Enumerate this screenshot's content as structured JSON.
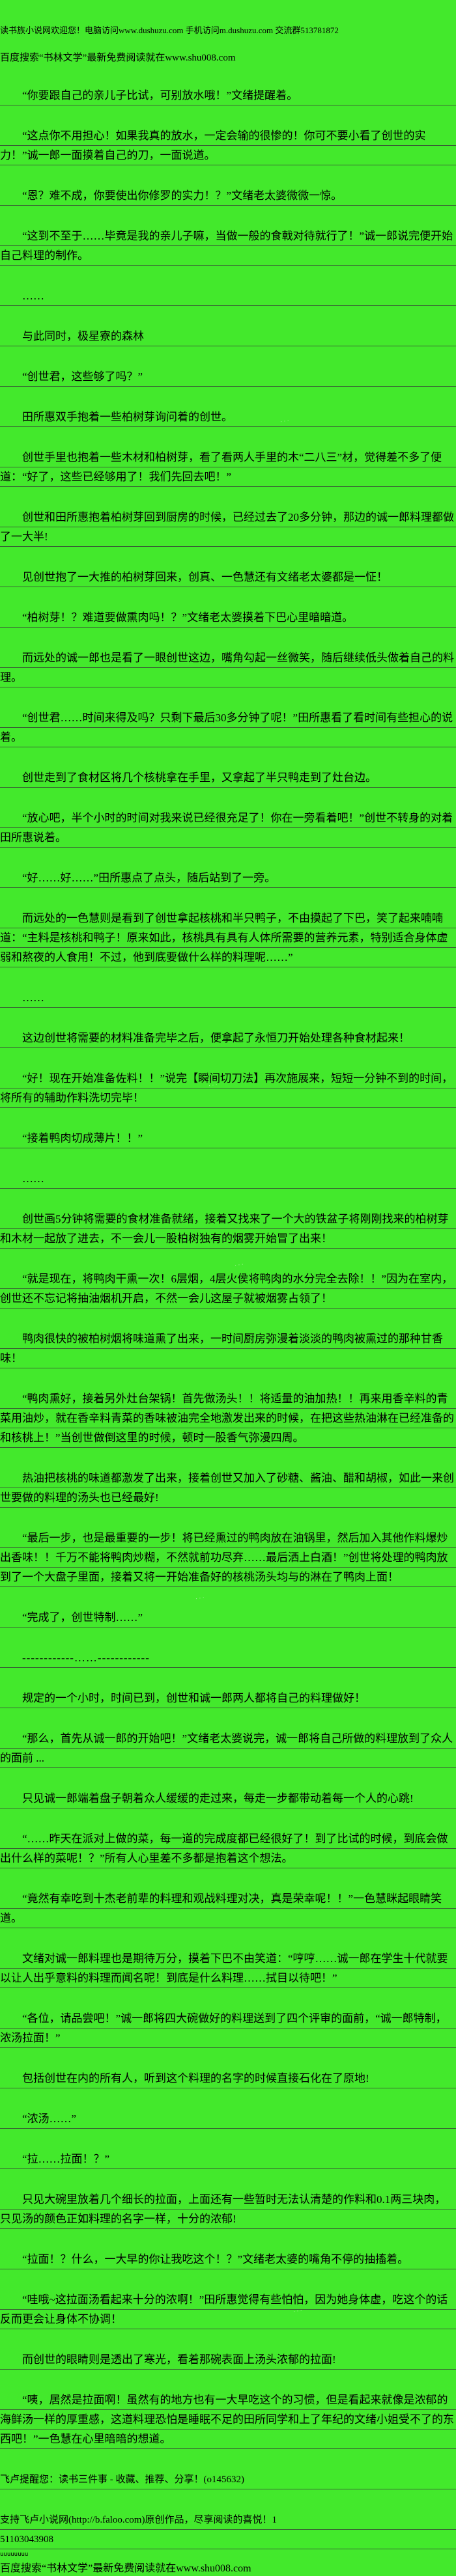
{
  "page": {
    "background_color": "#43E92C",
    "rule_color": "#374637",
    "text_color": "#000000"
  },
  "lines": [
    {
      "type": "header-small",
      "text": "读书族小说网欢迎您！电脑访问www.dushuzu.com 手机访问m.dushuzu.com 交流群513781872"
    },
    {
      "type": "header",
      "text": "百度搜索“书林文学”最新免费阅读就在www.shu008.com"
    },
    {
      "type": "body",
      "text": "“你要跟自己的亲儿子比试，可别放水哦！”文绪提醒着。"
    },
    {
      "type": "body",
      "text": "“这点你不用担心！如果我真的放水，一定会输的很惨的！你可不要小看了创世的实力！”诚一郎一面摸着自己的刀，一面说道。"
    },
    {
      "type": "body",
      "text": "“恩？难不成，你要使出你修罗的实力！？”文绪老太婆微微一惊。"
    },
    {
      "type": "body",
      "text": "“这到不至于……毕竟是我的亲儿子嘛，当做一般的食戟对待就行了！”诚一郎说完便开始自己料理的制作。"
    },
    {
      "type": "body",
      "text": "……"
    },
    {
      "type": "body",
      "text": "与此同时，极星寮的森林"
    },
    {
      "type": "body",
      "text": "“创世君，这些够了吗？”"
    },
    {
      "type": "body",
      "text": "田所惠双手抱着一些柏树芽询问着的创世。"
    },
    {
      "type": "body",
      "text": "创世手里也抱着一些木材和柏树芽，看了看两人手里的木“二八三”材，觉得差不多了便道：“好了，这些已经够用了！我们先回去吧！”"
    },
    {
      "type": "body",
      "text": "创世和田所惠抱着柏树芽回到厨房的时候，已经过去了20多分钟，那边的诚一郎料理都做了一大半!"
    },
    {
      "type": "body",
      "text": "见创世抱了一大推的柏树芽回来，创真、一色慧还有文绪老太婆都是一怔！"
    },
    {
      "type": "body",
      "text": "“柏树芽！？难道要做熏肉吗！？”文绪老太婆摸着下巴心里暗暗道。"
    },
    {
      "type": "body",
      "text": "而远处的诚一郎也是看了一眼创世这边，嘴角勾起一丝微笑，随后继续低头做着自己的料理。"
    },
    {
      "type": "body",
      "text": "“创世君……时间来得及吗？只剩下最后30多分钟了呢！”田所惠看了看时间有些担心的说着。"
    },
    {
      "type": "body",
      "text": "创世走到了食材区将几个核桃拿在手里，又拿起了半只鸭走到了灶台边。"
    },
    {
      "type": "body",
      "text": "“放心吧，半个小时的时间对我来说已经很充足了！你在一旁看着吧！”创世不转身的对着田所惠说着。"
    },
    {
      "type": "body",
      "text": "“好……好……”田所惠点了点头，随后站到了一旁。"
    },
    {
      "type": "body",
      "text": "而远处的一色慧则是看到了创世拿起核桃和半只鸭子，不由摸起了下巴，笑了起来喃喃道：“主料是核桃和鸭子！原来如此，核桃具有具有人体所需要的营养元素，特别适合身体虚弱和熬夜的人食用！不过，他到底要做什么样的料理呢……”"
    },
    {
      "type": "body",
      "text": "……"
    },
    {
      "type": "body",
      "text": "这边创世将需要的材料准备完毕之后，便拿起了永恒刀开始处理各种食材起来！"
    },
    {
      "type": "body",
      "text": "“好！现在开始准备佐料！！”说完【瞬间切刀法】再次施展来，短短一分钟不到的时间，将所有的辅助作料洗切完毕！"
    },
    {
      "type": "body",
      "text": "“接着鸭肉切成薄片！！”"
    },
    {
      "type": "body",
      "text": "……"
    },
    {
      "type": "body",
      "text": "创世画5分钟将需要的食材准备就绪，接着又找来了一个大的铁盆子将刚刚找来的柏树芽和木材一起放了进去，不一会儿一股柏树独有的烟雾开始冒了出来！"
    },
    {
      "type": "body",
      "text": "“就是现在，将鸭肉干熏一次！6层烟，4层火侯将鸭肉的水分完全去除！！”因为在室内，创世还不忘记将抽油烟机开启，不然一会儿这屋子就被烟雾占领了！"
    },
    {
      "type": "body",
      "text": "鸭肉很快的被柏树烟将味道熏了出来，一时间厨房弥漫着淡淡的鸭肉被熏过的那种甘香味！"
    },
    {
      "type": "body",
      "text": "“鸭肉熏好，接着另外灶台架锅！首先做汤头！！将适量的油加热！！再来用香辛料的青菜用油炒，就在香辛料青菜的香味被油完全地激发出来的时候，在把这些热油淋在已经准备的和核桃上！”当创世做倒这里的时候，顿时一股香气弥漫四周。"
    },
    {
      "type": "body",
      "text": "热油把核桃的味道都激发了出来，接着创世又加入了砂糖、酱油、醋和胡椒，如此一来创世要做的料理的汤头也已经最好!"
    },
    {
      "type": "body",
      "text": "“最后一步，也是最重要的一步！将已经熏过的鸭肉放在油锅里，然后加入其他作料爆炒出香味！！千万不能将鸭肉炒糊，不然就前功尽弃……最后洒上白酒！”创世将处理的鸭肉放到了一个大盘子里面，接着又将一开始准备好的核桃汤头均与的淋在了鸭肉上面！"
    },
    {
      "type": "body",
      "text": "“完成了，创世特制……”"
    },
    {
      "type": "divider",
      "text": "------------……------------"
    },
    {
      "type": "body",
      "text": "规定的一个小时，时间已到，创世和诚一郎两人都将自己的料理做好！"
    },
    {
      "type": "body",
      "text": "“那么，首先从诚一郎的开始吧！”文绪老太婆说完，诚一郎将自己所做的料理放到了众人的面前 ..."
    },
    {
      "type": "body",
      "text": "只见诚一郎端着盘子朝着众人缓缓的走过来，每走一步都带动着每一个人的心跳!"
    },
    {
      "type": "body",
      "text": "“……昨天在派对上做的菜，每一道的完成度都已经很好了！到了比试的时候，到底会做出什么样的菜呢！？”所有人心里差不多都是抱着这个想法。"
    },
    {
      "type": "body",
      "text": "“竟然有幸吃到十杰老前辈的料理和观战料理对决，真是荣幸呢！！”一色慧眯起眼睛笑道。"
    },
    {
      "type": "body",
      "text": "文绪对诚一郎料理也是期待万分，摸着下巴不由笑道：“哼哼……诚一郎在学生十代就要以让人出乎意料的料理而闻名呢！到底是什么料理……拭目以待吧！”"
    },
    {
      "type": "body",
      "text": "“各位，请品尝吧！”诚一郎将四大碗做好的料理送到了四个评审的面前，“诚一郎特制，浓汤拉面！”"
    },
    {
      "type": "body",
      "text": "包括创世在内的所有人，听到这个料理的名字的时候直接石化在了原地!"
    },
    {
      "type": "body",
      "text": "“浓汤……”"
    },
    {
      "type": "body",
      "text": "“拉……拉面！？”"
    },
    {
      "type": "body",
      "text": "只见大碗里放着几个细长的拉面，上面还有一些暂时无法认清楚的作料和0.1两三块肉，只见汤的颜色正如料理的名字一样，十分的浓郁!"
    },
    {
      "type": "body",
      "text": "“拉面！？什么，一大早的你让我吃这个！？”文绪老太婆的嘴角不停的抽搐着。"
    },
    {
      "type": "body",
      "text": "“哇哦~这拉面汤看起来十分的浓啊！”田所惠觉得有些怕怕，因为她身体虚，吃这个的话反而更会让身体不协调！"
    },
    {
      "type": "body",
      "text": "而创世的眼睛则是透出了寒光，看着那碗表面上汤头浓郁的拉面!"
    },
    {
      "type": "body",
      "text": "“咦，居然是拉面啊！虽然有的地方也有一大早吃这个的习惯，但是看起来就像是浓郁的海鲜汤一样的厚重感，这道料理恐怕是睡眠不足的田所同学和上了年纪的文绪小姐受不了的东西吧！”一色慧在心里暗暗的想道。"
    },
    {
      "type": "footer",
      "text": "飞卢提醒您：读书三件事 - 收藏、推荐、分享！(o145632)"
    },
    {
      "type": "footer",
      "text": "支持飞卢小说网(http://b.faloo.com)原创作品，尽享阅读的喜悦！1"
    },
    {
      "type": "footer-cont",
      "text": "51103043908"
    },
    {
      "type": "tiny",
      "text": "uuuuuuuu"
    },
    {
      "type": "footer-last",
      "text": "百度搜索“书林文学”最新免费阅读就在www.shu008.com"
    }
  ]
}
